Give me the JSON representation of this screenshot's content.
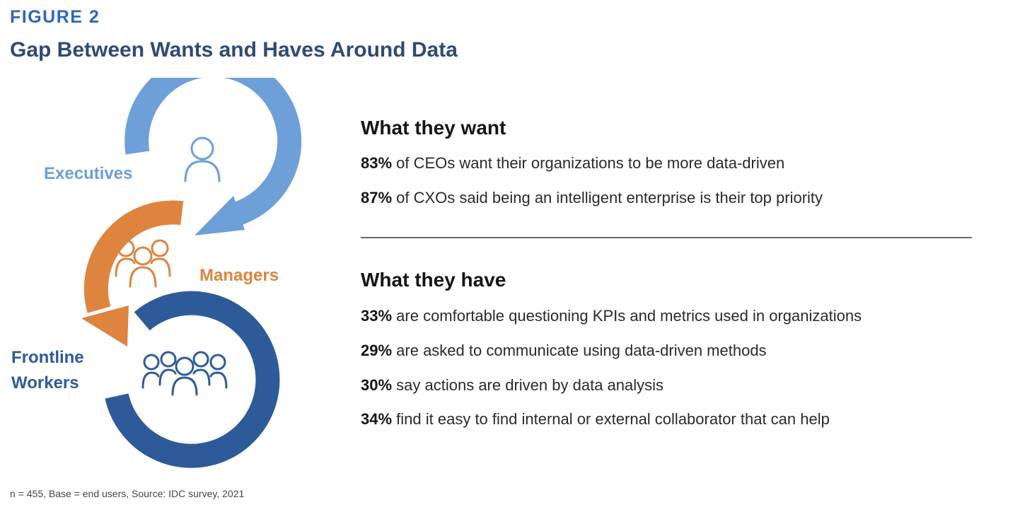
{
  "figure_label": "FIGURE 2",
  "title": "Gap Between Wants and Haves Around Data",
  "groups": {
    "executives": "Executives",
    "managers": "Managers",
    "frontline": "Frontline Workers"
  },
  "colors": {
    "executives": "#6d9fd8",
    "managers": "#de843f",
    "frontline": "#2d5b9a",
    "figure_label": "#2f67b2",
    "title": "#2e4b77"
  },
  "icons": [
    "person-icon",
    "group-icon",
    "crowd-icon"
  ],
  "want": {
    "heading": "What they want",
    "stats": [
      {
        "pct": "83%",
        "text": " of CEOs want their organizations to be more data-driven"
      },
      {
        "pct": "87%",
        "text": " of CXOs said being an intelligent enterprise is their top priority"
      }
    ]
  },
  "have": {
    "heading": "What they have",
    "stats": [
      {
        "pct": "33%",
        "text": " are comfortable questioning KPIs and metrics used in organizations"
      },
      {
        "pct": "29%",
        "text": " are asked to communicate using data-driven methods"
      },
      {
        "pct": "30%",
        "text": " say actions are driven by data analysis"
      },
      {
        "pct": "34%",
        "text": " find it easy to find internal or external collaborator that can help"
      }
    ]
  },
  "source": "n = 455, Base = end users, Source: IDC survey, 2021"
}
